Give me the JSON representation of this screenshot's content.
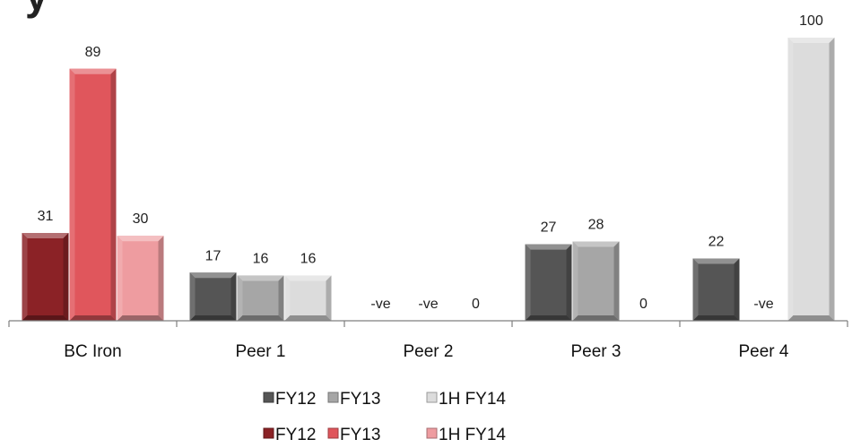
{
  "chart_data": {
    "type": "bar",
    "title": "",
    "xlabel": "",
    "ylabel": "",
    "ylim": [
      0,
      105
    ],
    "grid": false,
    "legend_position": "bottom",
    "categories": [
      "BC Iron",
      "Peer 1",
      "Peer 2",
      "Peer 3",
      "Peer 4"
    ],
    "groups": [
      {
        "category": "BC Iron",
        "palette": "red",
        "bars": [
          {
            "series": "FY12",
            "value": 31,
            "label": "31"
          },
          {
            "series": "FY13",
            "value": 89,
            "label": "89"
          },
          {
            "series": "1H FY14",
            "value": 30,
            "label": "30"
          }
        ]
      },
      {
        "category": "Peer 1",
        "palette": "grey",
        "bars": [
          {
            "series": "FY12",
            "value": 17,
            "label": "17"
          },
          {
            "series": "FY13",
            "value": 16,
            "label": "16"
          },
          {
            "series": "1H FY14",
            "value": 16,
            "label": "16"
          }
        ]
      },
      {
        "category": "Peer 2",
        "palette": "grey",
        "bars": [
          {
            "series": "FY12",
            "value": 0,
            "label": "-ve"
          },
          {
            "series": "FY13",
            "value": 0,
            "label": "-ve"
          },
          {
            "series": "1H FY14",
            "value": 0,
            "label": "0"
          }
        ]
      },
      {
        "category": "Peer 3",
        "palette": "grey",
        "bars": [
          {
            "series": "FY12",
            "value": 27,
            "label": "27"
          },
          {
            "series": "FY13",
            "value": 28,
            "label": "28"
          },
          {
            "series": "1H FY14",
            "value": 0,
            "label": "0"
          }
        ]
      },
      {
        "category": "Peer 4",
        "palette": "grey",
        "bars": [
          {
            "series": "FY12",
            "value": 22,
            "label": "22"
          },
          {
            "series": "FY13",
            "value": 0,
            "label": "-ve"
          },
          {
            "series": "1H FY14",
            "value": 100,
            "label": "100"
          }
        ]
      }
    ],
    "colors": {
      "grey": [
        "#555555",
        "#a6a6a6",
        "#dcdcdc"
      ],
      "red": [
        "#8b2226",
        "#e0565c",
        "#ee9ca0"
      ]
    },
    "legends": [
      {
        "palette": "grey",
        "items": [
          "FY12",
          "FY13",
          "1H FY14"
        ]
      },
      {
        "palette": "red",
        "items": [
          "FY12",
          "FY13",
          "1H FY14"
        ]
      }
    ]
  }
}
